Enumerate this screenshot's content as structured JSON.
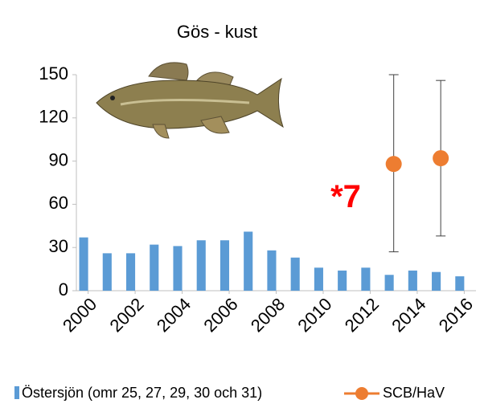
{
  "chart_data": {
    "type": "bar_errorpoint",
    "title": "Gös - kust",
    "annotation": "*7",
    "x": [
      2000,
      2001,
      2002,
      2003,
      2004,
      2005,
      2006,
      2007,
      2008,
      2009,
      2010,
      2011,
      2012,
      2013,
      2014,
      2015,
      2016
    ],
    "xlim": [
      1999.5,
      2016.5
    ],
    "xticks": [
      2000,
      2002,
      2004,
      2006,
      2008,
      2010,
      2012,
      2014,
      2016
    ],
    "ylim": [
      0,
      150
    ],
    "yticks": [
      0,
      30,
      60,
      90,
      120,
      150
    ],
    "grid": false,
    "legend": "bottom",
    "series": [
      {
        "name": "Östersjön (omr 25, 27, 29, 30 och 31)",
        "color": "#5b9bd5",
        "kind": "bar",
        "values": [
          37,
          26,
          26,
          32,
          31,
          35,
          35,
          41,
          28,
          23,
          16,
          14,
          16,
          11,
          14,
          13,
          10
        ]
      },
      {
        "name": "SCB/HaV",
        "color": "#ed7d31",
        "kind": "point",
        "values": [
          null,
          null,
          null,
          null,
          null,
          null,
          null,
          null,
          null,
          null,
          null,
          null,
          null,
          88,
          null,
          92,
          null
        ],
        "lower": [
          null,
          null,
          null,
          null,
          null,
          null,
          null,
          null,
          null,
          null,
          null,
          null,
          null,
          27,
          null,
          38,
          null
        ],
        "upper": [
          null,
          null,
          null,
          null,
          null,
          null,
          null,
          null,
          null,
          null,
          null,
          null,
          null,
          150,
          null,
          146,
          null
        ]
      }
    ]
  }
}
